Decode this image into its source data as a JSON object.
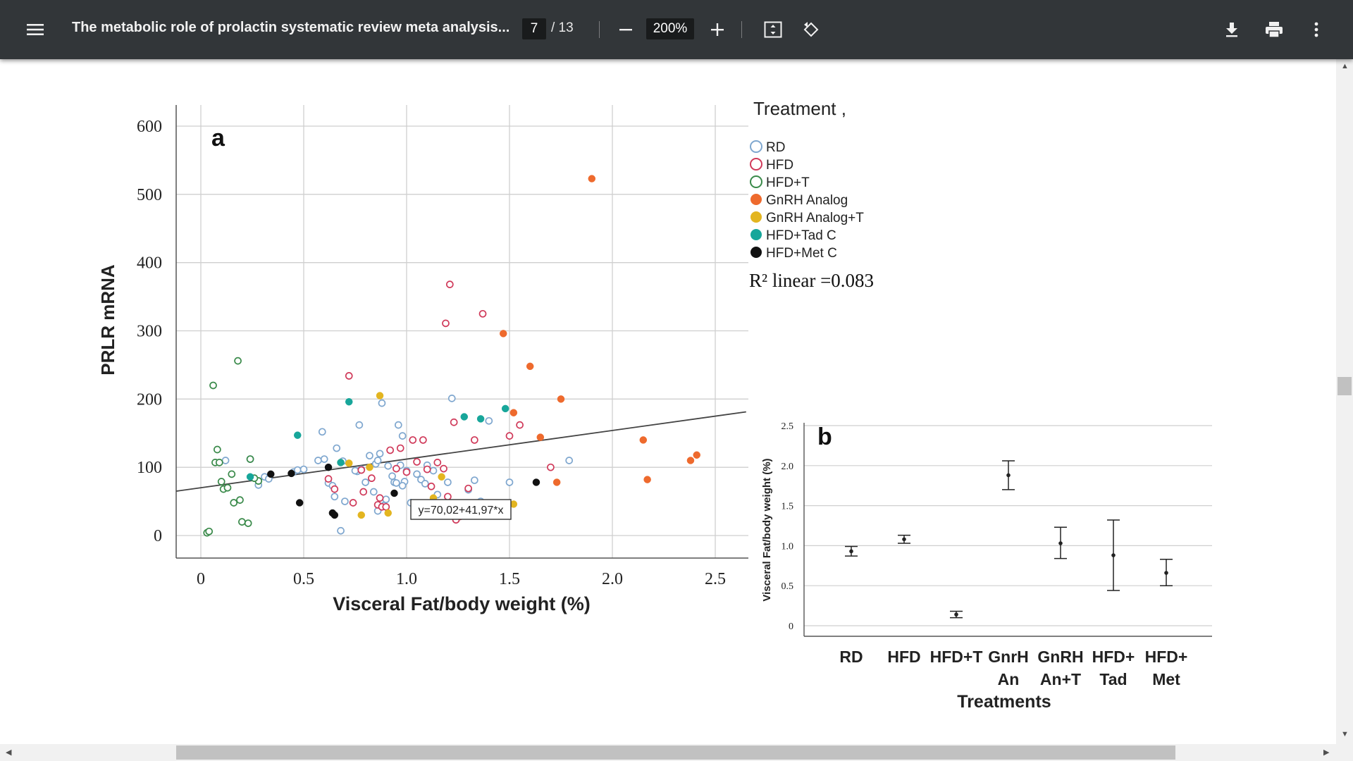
{
  "toolbar": {
    "title": "The metabolic role of prolactin systematic review meta analysis...",
    "page_current": "7",
    "page_total": "/ 13",
    "zoom": "200%",
    "menu_icon": "hamburger-menu-icon",
    "zoom_out_icon": "minus-icon",
    "zoom_in_icon": "plus-icon",
    "fit_icon": "fit-to-page-icon",
    "rotate_icon": "rotate-icon",
    "download_icon": "download-icon",
    "print_icon": "print-icon",
    "more_icon": "more-vert-icon",
    "background": "#323639"
  },
  "chart_data": [
    {
      "type": "scatter",
      "panel_label": "a",
      "xlabel": "Visceral Fat/body weight  (%)",
      "ylabel": "PRLR  mRNA",
      "x_ticks": [
        "0",
        "0.5",
        "1.0",
        "1.5",
        "2.0",
        "2.5"
      ],
      "y_ticks": [
        "0",
        "100",
        "200",
        "300",
        "400",
        "500",
        "600"
      ],
      "xlim": [
        -0.12,
        2.65
      ],
      "ylim": [
        -30,
        630
      ],
      "grid": true,
      "legend_title": "Treatment",
      "legend_position": "right",
      "r2_label": "R² linear =0.083",
      "fit_equation": "y=70,02+41,97*x",
      "fit": {
        "intercept": 70.02,
        "slope": 41.97
      },
      "series": [
        {
          "name": "RD",
          "color": "#7fa7cf",
          "filled": false,
          "points": [
            [
              0.12,
              110
            ],
            [
              0.24,
              112
            ],
            [
              0.31,
              86
            ],
            [
              0.45,
              93
            ],
            [
              0.47,
              96
            ],
            [
              0.5,
              97
            ],
            [
              0.57,
              110
            ],
            [
              0.59,
              152
            ],
            [
              0.6,
              112
            ],
            [
              0.62,
              77
            ],
            [
              0.64,
              73
            ],
            [
              0.65,
              57
            ],
            [
              0.66,
              128
            ],
            [
              0.69,
              109
            ],
            [
              0.7,
              50
            ],
            [
              0.76,
              94
            ],
            [
              0.77,
              162
            ],
            [
              0.78,
              97
            ],
            [
              0.8,
              78
            ],
            [
              0.82,
              117
            ],
            [
              0.84,
              64
            ],
            [
              0.85,
              105
            ],
            [
              0.86,
              110
            ],
            [
              0.87,
              120
            ],
            [
              0.88,
              194
            ],
            [
              0.89,
              44
            ],
            [
              0.9,
              53
            ],
            [
              0.91,
              102
            ],
            [
              0.93,
              87
            ],
            [
              0.94,
              78
            ],
            [
              0.95,
              77
            ],
            [
              0.96,
              162
            ],
            [
              0.97,
              103
            ],
            [
              0.98,
              146
            ],
            [
              0.99,
              79
            ],
            [
              1.0,
              95
            ],
            [
              1.02,
              48
            ],
            [
              1.05,
              90
            ],
            [
              1.07,
              82
            ],
            [
              1.09,
              76
            ],
            [
              1.1,
              103
            ],
            [
              1.13,
              95
            ],
            [
              1.15,
              60
            ],
            [
              1.2,
              78
            ],
            [
              1.22,
              201
            ],
            [
              1.3,
              67
            ],
            [
              1.33,
              81
            ],
            [
              1.36,
              50
            ],
            [
              1.4,
              168
            ],
            [
              1.5,
              78
            ],
            [
              1.79,
              110
            ],
            [
              0.33,
              83
            ],
            [
              0.28,
              74
            ],
            [
              0.68,
              7
            ],
            [
              0.86,
              36
            ],
            [
              0.98,
              73
            ],
            [
              0.75,
              95
            ]
          ]
        },
        {
          "name": "HFD",
          "color": "#d03a5a",
          "filled": false,
          "points": [
            [
              0.62,
              83
            ],
            [
              0.65,
              68
            ],
            [
              0.72,
              234
            ],
            [
              0.74,
              48
            ],
            [
              0.78,
              96
            ],
            [
              0.79,
              64
            ],
            [
              0.83,
              84
            ],
            [
              0.86,
              45
            ],
            [
              0.87,
              55
            ],
            [
              0.88,
              42
            ],
            [
              0.9,
              42
            ],
            [
              0.92,
              125
            ],
            [
              0.95,
              98
            ],
            [
              0.97,
              128
            ],
            [
              1.0,
              93
            ],
            [
              1.03,
              140
            ],
            [
              1.05,
              108
            ],
            [
              1.08,
              140
            ],
            [
              1.1,
              97
            ],
            [
              1.12,
              72
            ],
            [
              1.15,
              107
            ],
            [
              1.18,
              98
            ],
            [
              1.19,
              311
            ],
            [
              1.2,
              57
            ],
            [
              1.21,
              368
            ],
            [
              1.22,
              44
            ],
            [
              1.23,
              166
            ],
            [
              1.24,
              23
            ],
            [
              1.26,
              28
            ],
            [
              1.3,
              69
            ],
            [
              1.33,
              140
            ],
            [
              1.37,
              325
            ],
            [
              1.5,
              146
            ],
            [
              1.55,
              162
            ],
            [
              1.7,
              100
            ]
          ]
        },
        {
          "name": "HFD+T",
          "color": "#3a8a4a",
          "filled": false,
          "points": [
            [
              0.03,
              4
            ],
            [
              0.04,
              6
            ],
            [
              0.06,
              220
            ],
            [
              0.07,
              107
            ],
            [
              0.08,
              126
            ],
            [
              0.09,
              107
            ],
            [
              0.1,
              79
            ],
            [
              0.11,
              68
            ],
            [
              0.13,
              70
            ],
            [
              0.15,
              90
            ],
            [
              0.16,
              48
            ],
            [
              0.18,
              256
            ],
            [
              0.19,
              52
            ],
            [
              0.2,
              20
            ],
            [
              0.23,
              18
            ],
            [
              0.24,
              112
            ],
            [
              0.28,
              80
            ],
            [
              0.26,
              84
            ]
          ]
        },
        {
          "name": "GnRH Analog",
          "color": "#ee6a2d",
          "filled": true,
          "points": [
            [
              1.47,
              296
            ],
            [
              1.52,
              180
            ],
            [
              1.6,
              248
            ],
            [
              1.65,
              144
            ],
            [
              1.75,
              200
            ],
            [
              1.9,
              523
            ],
            [
              2.15,
              140
            ],
            [
              2.17,
              82
            ],
            [
              2.38,
              110
            ],
            [
              2.41,
              118
            ],
            [
              1.73,
              78
            ]
          ]
        },
        {
          "name": "GnRH Analog+T",
          "color": "#e3b520",
          "filled": true,
          "points": [
            [
              0.68,
              107
            ],
            [
              0.72,
              106
            ],
            [
              0.78,
              30
            ],
            [
              0.82,
              100
            ],
            [
              0.87,
              205
            ],
            [
              0.91,
              33
            ],
            [
              1.13,
              55
            ],
            [
              1.17,
              86
            ],
            [
              1.52,
              46
            ]
          ]
        },
        {
          "name": "HFD+Tad C",
          "color": "#17a69a",
          "filled": true,
          "points": [
            [
              0.24,
              86
            ],
            [
              0.47,
              147
            ],
            [
              0.68,
              107
            ],
            [
              0.72,
              196
            ],
            [
              1.28,
              174
            ],
            [
              1.36,
              171
            ],
            [
              1.48,
              186
            ]
          ]
        },
        {
          "name": "HFD+Met C",
          "color": "#111111",
          "filled": true,
          "points": [
            [
              0.34,
              90
            ],
            [
              0.44,
              91
            ],
            [
              0.48,
              48
            ],
            [
              0.62,
              100
            ],
            [
              0.64,
              33
            ],
            [
              0.65,
              30
            ],
            [
              0.94,
              62
            ],
            [
              1.63,
              78
            ]
          ]
        }
      ]
    },
    {
      "type": "errorbar",
      "panel_label": "b",
      "xlabel": "Treatments",
      "ylabel": "Visceral Fat/body weight  (%)",
      "categories": [
        [
          "RD"
        ],
        [
          "HFD"
        ],
        [
          "HFD+T"
        ],
        [
          "GnrH",
          "An"
        ],
        [
          "GnRH",
          "An+T"
        ],
        [
          "HFD+",
          "Tad"
        ],
        [
          "HFD+",
          "Met"
        ]
      ],
      "y_ticks": [
        "0",
        "0.5",
        "1.0",
        "1.5",
        "2.0",
        "2.5"
      ],
      "ylim": [
        0,
        2.5
      ],
      "grid": true,
      "means": [
        0.93,
        1.08,
        0.14,
        1.88,
        1.03,
        0.88,
        0.66
      ],
      "lower": [
        0.87,
        1.03,
        0.1,
        1.7,
        0.84,
        0.44,
        0.5
      ],
      "upper": [
        0.99,
        1.13,
        0.18,
        2.06,
        1.23,
        1.32,
        0.83
      ]
    }
  ]
}
